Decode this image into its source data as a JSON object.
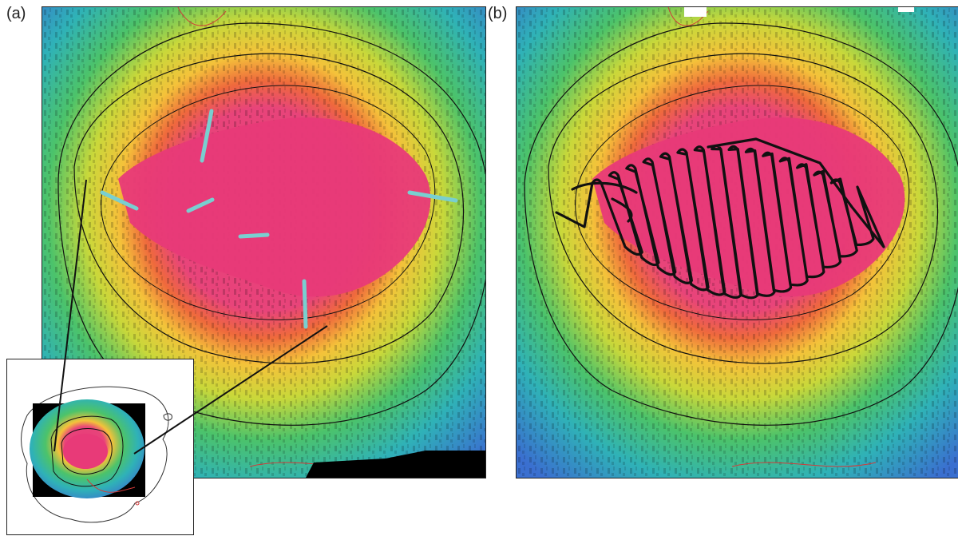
{
  "panels": {
    "a": {
      "label": "(a)"
    },
    "b": {
      "label": "(b)"
    }
  },
  "colors": {
    "summit": "#e83a78",
    "contour_dark": "#111111",
    "contour_red": "#d23a3a",
    "survey_lines_a": "#79cfd0",
    "survey_track_b": "#111111",
    "frame": "#222222"
  }
}
